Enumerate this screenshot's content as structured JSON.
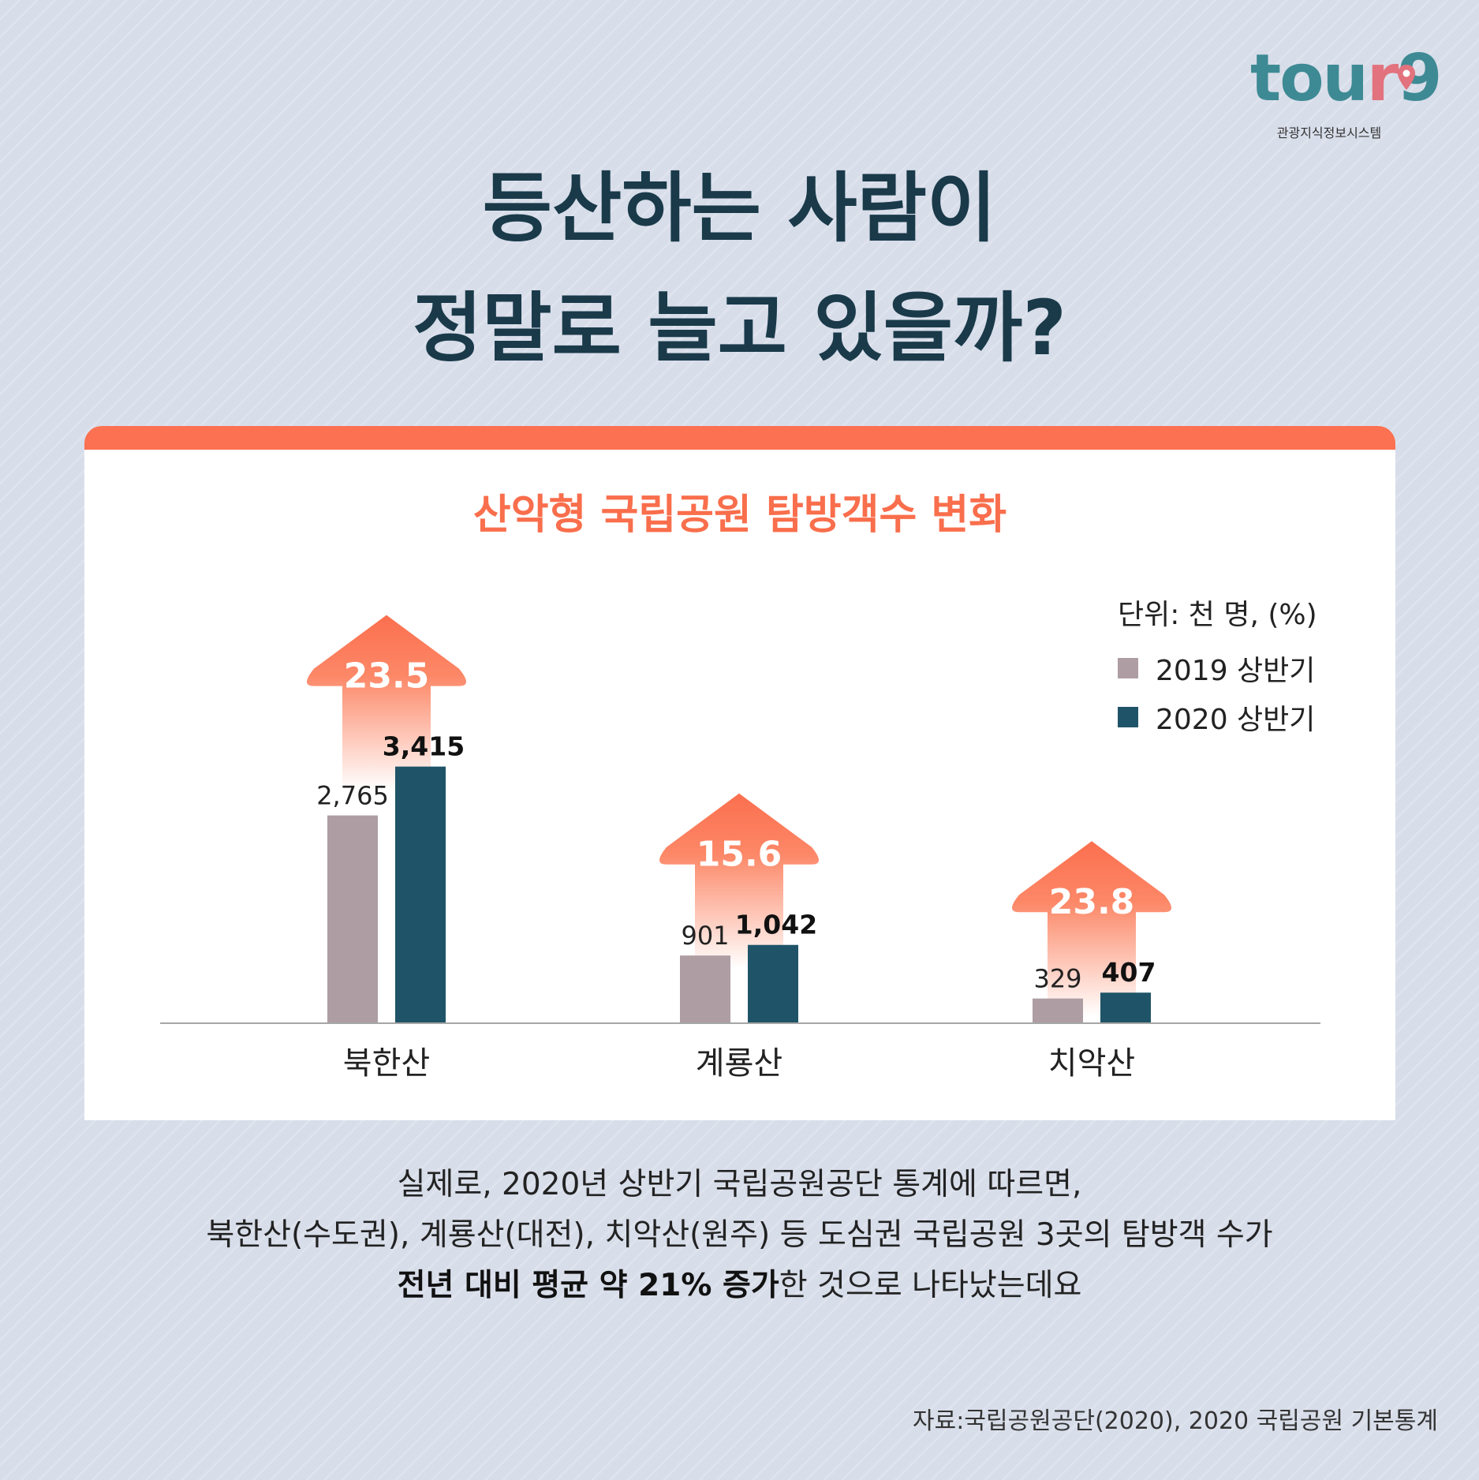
{
  "logo": {
    "word_main": "tou",
    "word_r": "r",
    "word_end": "9",
    "subtitle": "관광지식정보시스템"
  },
  "headline": {
    "line1": "등산하는 사람이",
    "line2": "정말로 늘고 있을까?"
  },
  "colors": {
    "accent": "#fb7151",
    "bar_2019": "#ae9ea3",
    "bar_2020": "#1f5468",
    "text_dark": "#1a3a4a"
  },
  "chart_data": {
    "type": "bar",
    "title": "산악형 국립공원 탐방객수 변화",
    "unit": "단위: 천 명, (%)",
    "categories": [
      "북한산",
      "계룡산",
      "치악산"
    ],
    "series": [
      {
        "name": "2019 상반기",
        "values": [
          2765,
          901,
          329
        ],
        "labels": [
          "2,765",
          "901",
          "329"
        ]
      },
      {
        "name": "2020 상반기",
        "values": [
          3415,
          1042,
          407
        ],
        "labels": [
          "3,415",
          "1,042",
          "407"
        ]
      }
    ],
    "growth": [
      23.5,
      15.6,
      23.8
    ],
    "growth_labels": [
      "23.5",
      "15.6",
      "23.8"
    ],
    "ylim": [
      0,
      3800
    ],
    "legend": "top-right"
  },
  "body": {
    "line1": "실제로, 2020년 상반기 국립공원공단 통계에 따르면,",
    "line2": "북한산(수도권), 계룡산(대전), 치악산(원주) 등 도심권 국립공원 3곳의 탐방객 수가",
    "line3_bold": "전년 대비 평균 약 21% 증가",
    "line3_rest": "한 것으로 나타났는데요"
  },
  "source": "자료:국립공원공단(2020), 2020 국립공원 기본통계"
}
